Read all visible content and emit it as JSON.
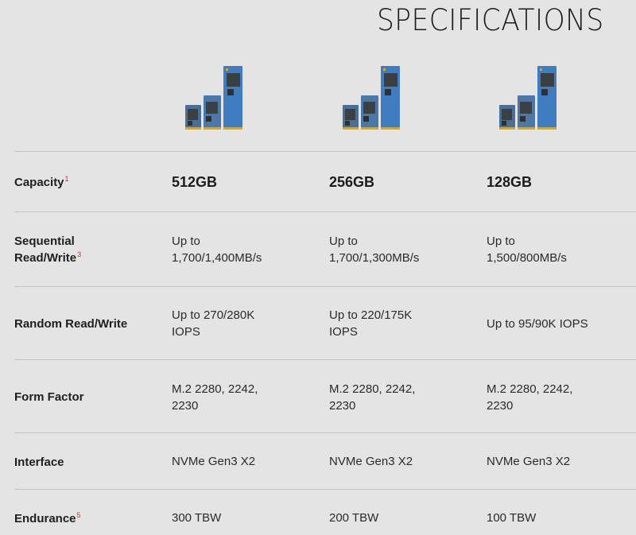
{
  "title": "SPECIFICATIONS",
  "rows": [
    {
      "label": "Capacity",
      "note": "1",
      "values": [
        "512GB",
        "256GB",
        "128GB"
      ]
    },
    {
      "label": "Sequential Read/Write",
      "label_line1": "Sequential",
      "label_line2": "Read/Write",
      "note": "3",
      "values": [
        "Up to 1,700/1,400MB/s",
        "Up to 1,700/1,300MB/s",
        "Up to 1,500/800MB/s"
      ],
      "values_l1": [
        "Up to",
        "Up to",
        "Up to"
      ],
      "values_l2": [
        "1,700/1,400MB/s",
        "1,700/1,300MB/s",
        "1,500/800MB/s"
      ]
    },
    {
      "label": "Random Read/Write",
      "values": [
        "Up to 270/280K IOPS",
        "Up to 220/175K IOPS",
        "Up to 95/90K IOPS"
      ],
      "values_l1": [
        "Up to 270/280K",
        "Up to 220/175K",
        "Up to 95/90K IOPS"
      ],
      "values_l2": [
        "IOPS",
        "IOPS",
        ""
      ]
    },
    {
      "label": "Form Factor",
      "values": [
        "M.2 2280, 2242, 2230",
        "M.2 2280, 2242, 2230",
        "M.2 2280, 2242, 2230"
      ],
      "values_l1": [
        "M.2 2280, 2242,",
        "M.2 2280, 2242,",
        "M.2 2280, 2242,"
      ],
      "values_l2": [
        "2230",
        "2230",
        "2230"
      ]
    },
    {
      "label": "Interface",
      "values": [
        "NVMe Gen3 X2",
        "NVMe Gen3 X2",
        "NVMe Gen3 X2"
      ]
    },
    {
      "label": "Endurance",
      "note": "5",
      "values": [
        "300 TBW",
        "200 TBW",
        "100 TBW"
      ]
    }
  ]
}
